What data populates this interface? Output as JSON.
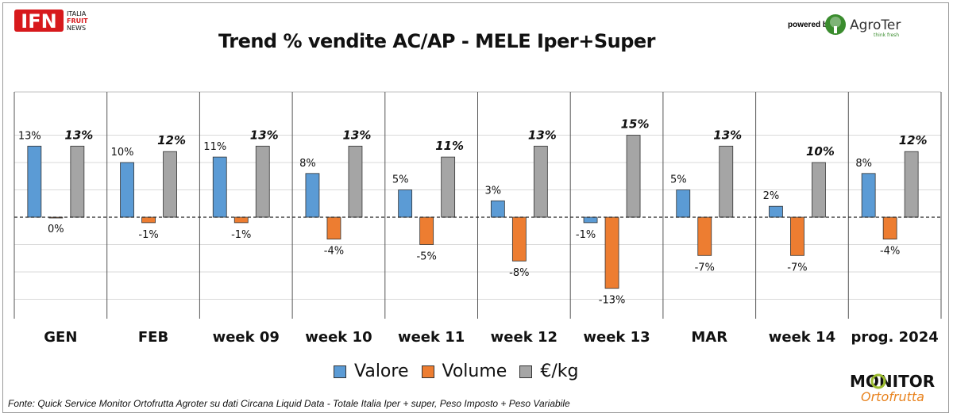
{
  "header": {
    "logo_text": "IFN",
    "logo_sub": [
      "ITALIA",
      "FRUIT",
      "NEWS"
    ],
    "powered_by": "powered by",
    "agroter_name": "AgroTer",
    "agroter_tagline": "think fresh"
  },
  "colors": {
    "valore": "#5b9bd5",
    "volume": "#ed7d31",
    "eurkg": "#a5a5a5",
    "ifn_red": "#d7191c",
    "agroter_green": "#3a8c2e"
  },
  "legend": {
    "valore": "Valore",
    "volume": "Volume",
    "eurkg": "€/kg"
  },
  "footer": {
    "source": "Fonte: Quick Service Monitor Ortofrutta Agroter su dati Circana Liquid Data - Totale Italia Iper + super, Peso Imposto + Peso Variabile",
    "monitor_line1": "MONITOR",
    "monitor_line2": "Ortofrutta"
  },
  "chart_data": {
    "type": "bar",
    "title": "Trend % vendite AC/AP - MELE Iper+Super",
    "categories": [
      "GEN",
      "FEB",
      "week 09",
      "week 10",
      "week 11",
      "week 12",
      "week 13",
      "MAR",
      "week 14",
      "prog. 2024"
    ],
    "series": [
      {
        "name": "Valore",
        "values": [
          13,
          10,
          11,
          8,
          5,
          3,
          -1,
          5,
          2,
          8
        ],
        "labels": [
          "13%",
          "10%",
          "11%",
          "8%",
          "5%",
          "3%",
          "-1%",
          "5%",
          "2%",
          "8%"
        ]
      },
      {
        "name": "Volume",
        "values": [
          0,
          -1,
          -1,
          -4,
          -5,
          -8,
          -13,
          -7,
          -7,
          -4
        ],
        "labels": [
          "0%",
          "-1%",
          "-1%",
          "-4%",
          "-5%",
          "-8%",
          "-13%",
          "-7%",
          "-7%",
          "-4%"
        ]
      },
      {
        "name": "€/kg",
        "values": [
          13,
          12,
          13,
          13,
          11,
          13,
          15,
          13,
          10,
          12
        ],
        "labels": [
          "13%",
          "12%",
          "13%",
          "13%",
          "11%",
          "13%",
          "15%",
          "13%",
          "10%",
          "12%"
        ]
      }
    ],
    "unit": "%",
    "ylim": [
      -15,
      20
    ],
    "grid": true,
    "legend_position": "bottom-center"
  }
}
